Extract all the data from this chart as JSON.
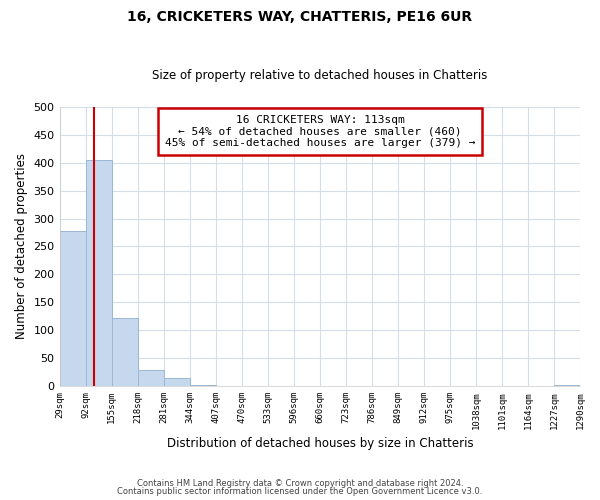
{
  "title": "16, CRICKETERS WAY, CHATTERIS, PE16 6UR",
  "subtitle": "Size of property relative to detached houses in Chatteris",
  "xlabel": "Distribution of detached houses by size in Chatteris",
  "ylabel": "Number of detached properties",
  "bin_edges": [
    29,
    92,
    155,
    218,
    281,
    344,
    407,
    470,
    533,
    596,
    660,
    723,
    786,
    849,
    912,
    975,
    1038,
    1101,
    1164,
    1227,
    1290
  ],
  "bar_heights": [
    278,
    405,
    122,
    29,
    15,
    3,
    0,
    0,
    0,
    0,
    0,
    0,
    0,
    0,
    0,
    0,
    0,
    0,
    0,
    3
  ],
  "bar_color": "#c5d8ed",
  "bar_edgecolor": "#9ab8d4",
  "property_size": 113,
  "property_line_color": "#cc0000",
  "annotation_line1": "16 CRICKETERS WAY: 113sqm",
  "annotation_line2": "← 54% of detached houses are smaller (460)",
  "annotation_line3": "45% of semi-detached houses are larger (379) →",
  "annotation_box_color": "#ffffff",
  "annotation_box_edgecolor": "#cc0000",
  "ylim": [
    0,
    500
  ],
  "yticks": [
    0,
    50,
    100,
    150,
    200,
    250,
    300,
    350,
    400,
    450,
    500
  ],
  "footer_line1": "Contains HM Land Registry data © Crown copyright and database right 2024.",
  "footer_line2": "Contains public sector information licensed under the Open Government Licence v3.0.",
  "background_color": "#ffffff",
  "grid_color": "#d4dde8"
}
